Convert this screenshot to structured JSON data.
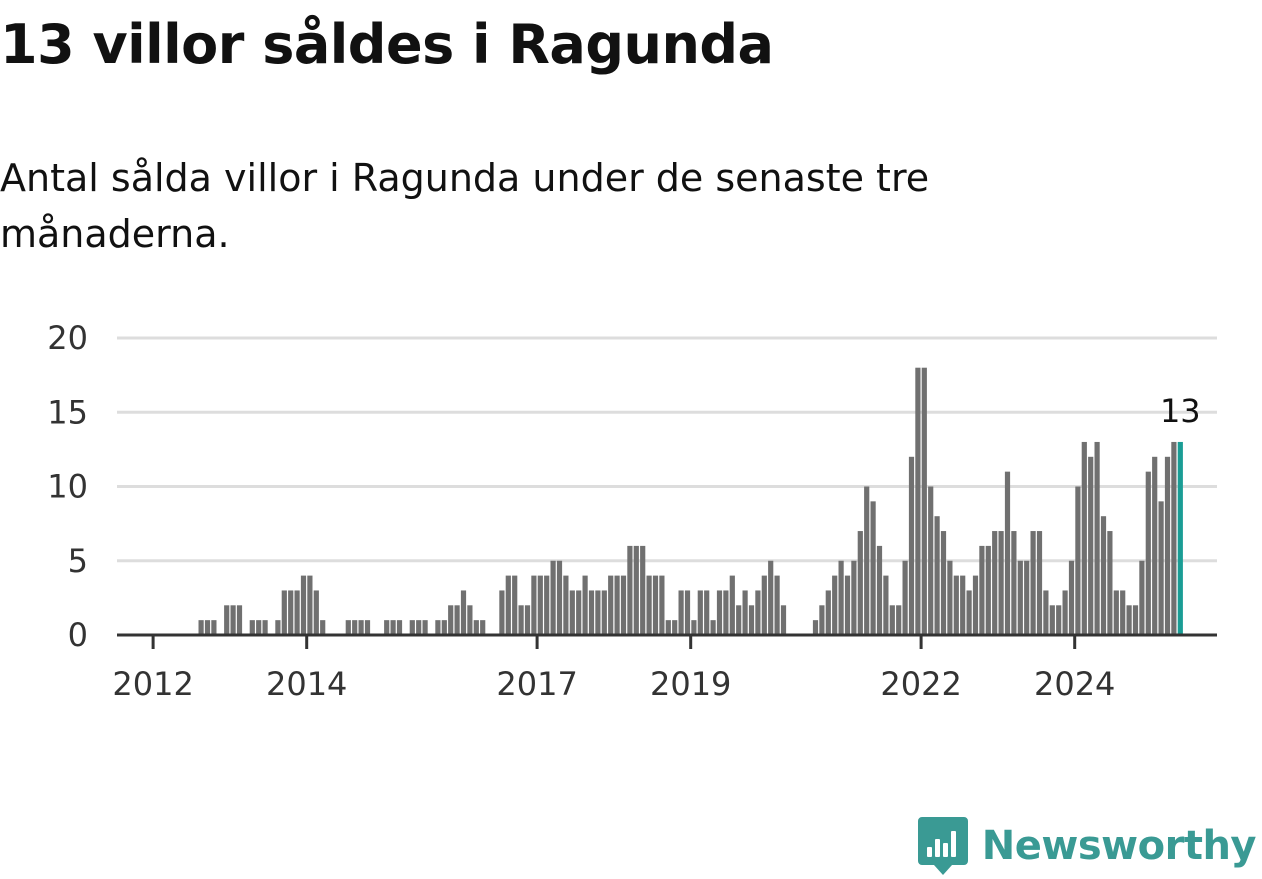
{
  "title": "13 villor såldes i Ragunda",
  "subtitle": "Antal sålda villor i Ragunda under de senaste tre månaderna.",
  "brand": "Newsworthy",
  "colors": {
    "bar": "#707070",
    "highlight": "#1a9d95",
    "grid": "#dddddd",
    "axis": "#333333",
    "brand": "#3a9a94"
  },
  "chart_data": {
    "type": "bar",
    "start": "2011-09",
    "interval": "month",
    "values": [
      0,
      0,
      0,
      0,
      0,
      0,
      0,
      0,
      0,
      0,
      0,
      1,
      1,
      1,
      0,
      2,
      2,
      2,
      0,
      1,
      1,
      1,
      0,
      1,
      3,
      3,
      3,
      4,
      4,
      3,
      1,
      0,
      0,
      0,
      1,
      1,
      1,
      1,
      0,
      0,
      1,
      1,
      1,
      0,
      1,
      1,
      1,
      0,
      1,
      1,
      2,
      2,
      3,
      2,
      1,
      1,
      0,
      0,
      3,
      4,
      4,
      2,
      2,
      4,
      4,
      4,
      5,
      5,
      4,
      3,
      3,
      4,
      3,
      3,
      3,
      4,
      4,
      4,
      6,
      6,
      6,
      4,
      4,
      4,
      1,
      1,
      3,
      3,
      1,
      3,
      3,
      1,
      3,
      3,
      4,
      2,
      3,
      2,
      3,
      4,
      5,
      4,
      2,
      0,
      0,
      0,
      0,
      1,
      2,
      3,
      4,
      5,
      4,
      5,
      7,
      10,
      9,
      6,
      4,
      2,
      2,
      5,
      12,
      18,
      18,
      10,
      8,
      7,
      5,
      4,
      4,
      3,
      4,
      6,
      6,
      7,
      7,
      11,
      7,
      5,
      5,
      7,
      7,
      3,
      2,
      2,
      3,
      5,
      10,
      13,
      12,
      13,
      8,
      7,
      3,
      3,
      2,
      2,
      5,
      11,
      12,
      9,
      12,
      13,
      13
    ],
    "x_ticks": [
      "2012",
      "2014",
      "2017",
      "2019",
      "2022",
      "2024"
    ],
    "y_ticks": [
      "0",
      "5",
      "10",
      "15",
      "20"
    ],
    "ylim": [
      0,
      20
    ],
    "highlight_label": "13"
  }
}
